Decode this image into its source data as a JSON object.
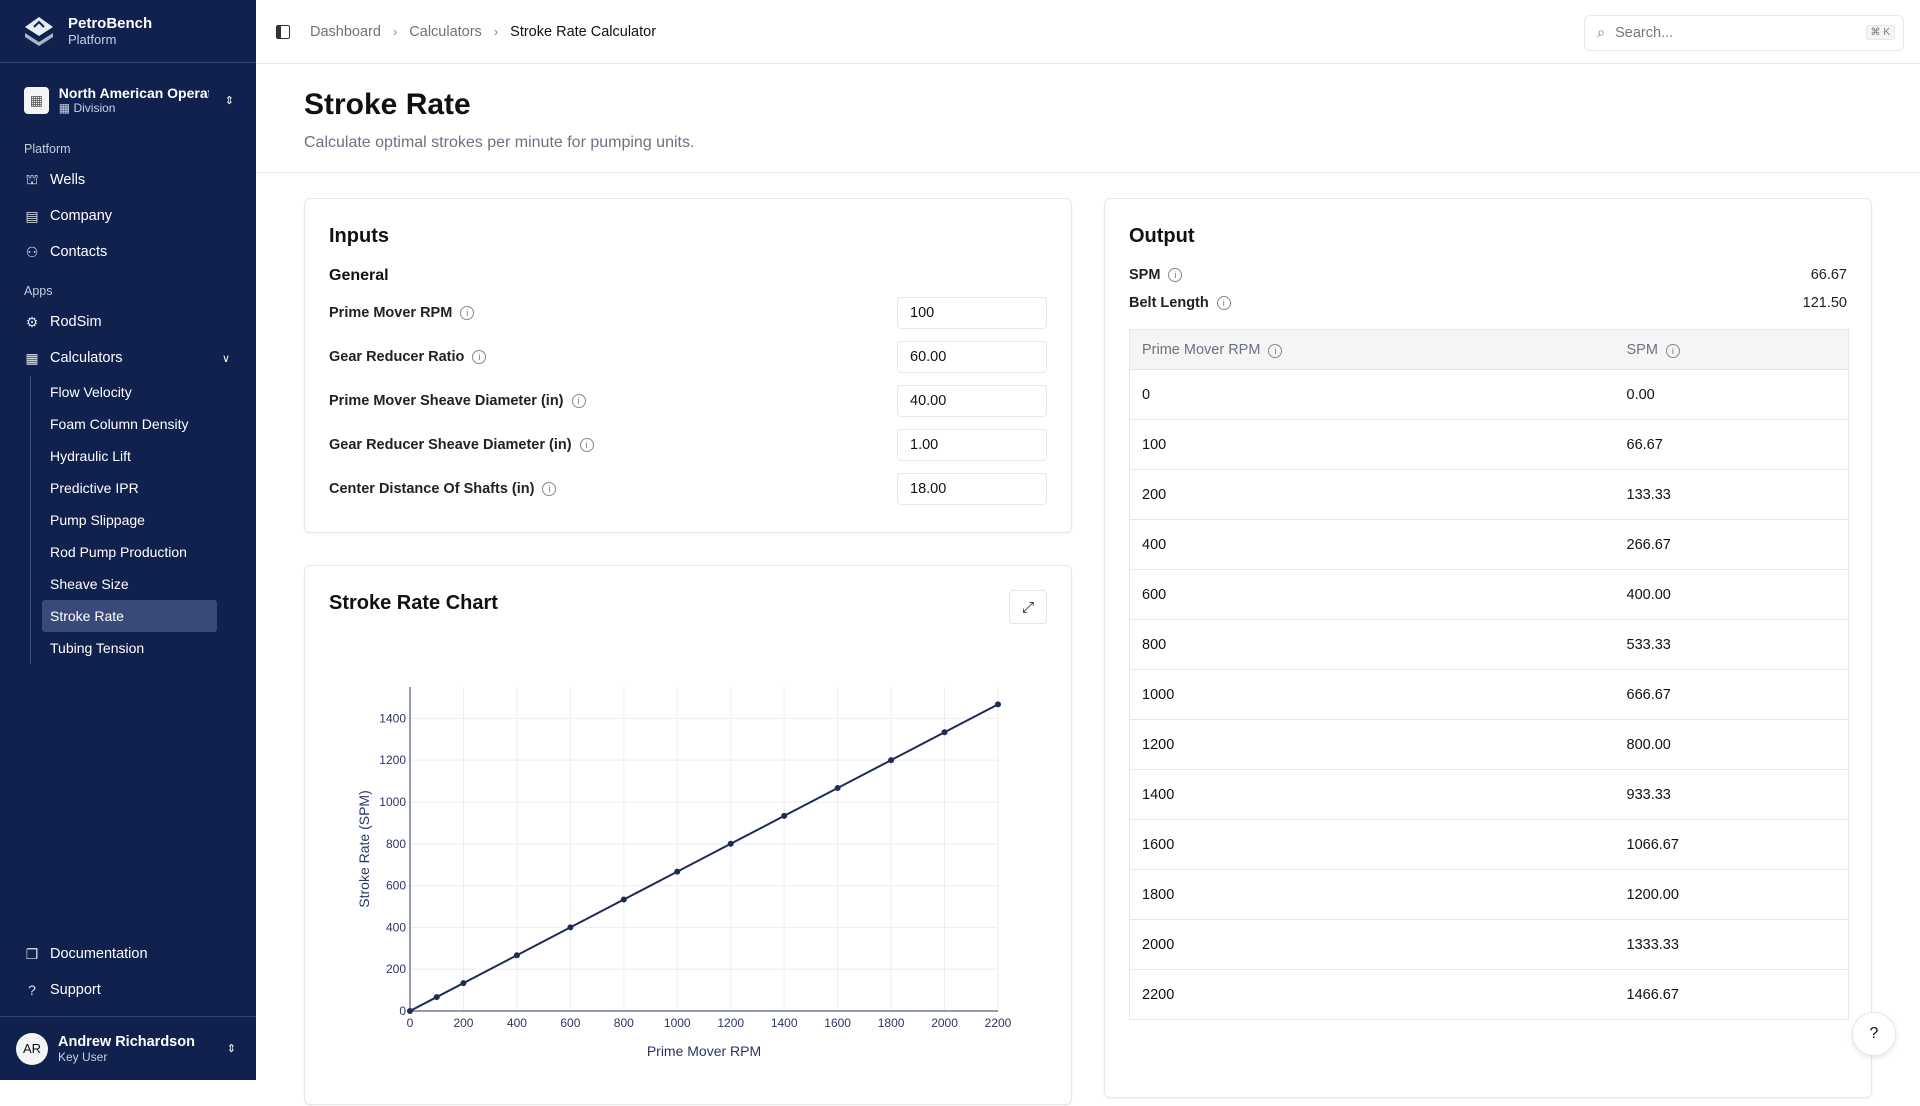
{
  "brand": {
    "name": "PetroBench",
    "sub": "Platform"
  },
  "org": {
    "name": "North American Operations",
    "type": "Division"
  },
  "sidebar": {
    "platform_label": "Platform",
    "platform_items": [
      {
        "label": "Wells",
        "icon": "oil-rig-icon"
      },
      {
        "label": "Company",
        "icon": "building-icon"
      },
      {
        "label": "Contacts",
        "icon": "users-icon"
      }
    ],
    "apps_label": "Apps",
    "apps_items": [
      {
        "label": "RodSim",
        "icon": "rodsim-icon"
      },
      {
        "label": "Calculators",
        "icon": "calculator-icon"
      }
    ],
    "calculators": [
      "Flow Velocity",
      "Foam Column Density",
      "Hydraulic Lift",
      "Predictive IPR",
      "Pump Slippage",
      "Rod Pump Production",
      "Sheave Size",
      "Stroke Rate",
      "Tubing Tension"
    ],
    "active": "Stroke Rate",
    "footer": [
      {
        "label": "Documentation",
        "icon": "documents-icon"
      },
      {
        "label": "Support",
        "icon": "help-circle-icon"
      }
    ]
  },
  "user": {
    "initials": "AR",
    "name": "Andrew Richardson",
    "role": "Key User"
  },
  "breadcrumb": [
    "Dashboard",
    "Calculators",
    "Stroke Rate Calculator"
  ],
  "search": {
    "placeholder": "Search...",
    "shortcut": "⌘ K"
  },
  "page": {
    "title": "Stroke Rate",
    "subtitle": "Calculate optimal strokes per minute for pumping units."
  },
  "inputs": {
    "title": "Inputs",
    "group": "General",
    "fields": [
      {
        "label": "Prime Mover RPM",
        "value": "100"
      },
      {
        "label": "Gear Reducer Ratio",
        "value": "60.00"
      },
      {
        "label": "Prime Mover Sheave Diameter (in)",
        "value": "40.00"
      },
      {
        "label": "Gear Reducer Sheave Diameter (in)",
        "value": "1.00"
      },
      {
        "label": "Center Distance Of Shafts (in)",
        "value": "18.00"
      }
    ]
  },
  "output": {
    "title": "Output",
    "spm_label": "SPM",
    "spm": "66.67",
    "belt_label": "Belt Length",
    "belt": "121.50",
    "columns": [
      "Prime Mover RPM",
      "SPM"
    ],
    "rows": [
      [
        "0",
        "0.00"
      ],
      [
        "100",
        "66.67"
      ],
      [
        "200",
        "133.33"
      ],
      [
        "400",
        "266.67"
      ],
      [
        "600",
        "400.00"
      ],
      [
        "800",
        "533.33"
      ],
      [
        "1000",
        "666.67"
      ],
      [
        "1200",
        "800.00"
      ],
      [
        "1400",
        "933.33"
      ],
      [
        "1600",
        "1066.67"
      ],
      [
        "1800",
        "1200.00"
      ],
      [
        "2000",
        "1333.33"
      ],
      [
        "2200",
        "1466.67"
      ]
    ]
  },
  "chart_title": "Stroke Rate Chart",
  "chart_data": {
    "type": "line",
    "xlabel": "Prime Mover RPM",
    "ylabel": "Stroke Rate (SPM)",
    "xlim": [
      0,
      2200
    ],
    "ylim": [
      0,
      1550
    ],
    "x": [
      0,
      100,
      200,
      400,
      600,
      800,
      1000,
      1200,
      1400,
      1600,
      1800,
      2000,
      2200
    ],
    "y": [
      0,
      66.67,
      133.33,
      266.67,
      400,
      533.33,
      666.67,
      800,
      933.33,
      1066.67,
      1200,
      1333.33,
      1466.67
    ],
    "xticks": [
      0,
      200,
      400,
      600,
      800,
      1000,
      1200,
      1400,
      1600,
      1800,
      2000,
      2200
    ],
    "yticks": [
      0,
      200,
      400,
      600,
      800,
      1000,
      1200,
      1400
    ],
    "grid": true,
    "color": "#1e2a5a"
  }
}
